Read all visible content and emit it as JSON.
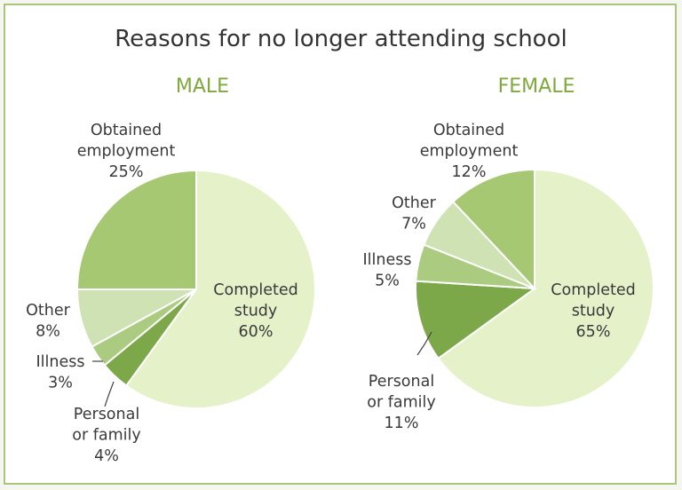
{
  "chart_data": [
    {
      "type": "pie",
      "title": "Reasons for no longer attending school",
      "chart_title": "MALE",
      "slices": [
        {
          "name": "Completed study",
          "label_lines": [
            "Completed",
            "study"
          ],
          "percent_text": "60%",
          "value": 60,
          "color": "#e5f1c8"
        },
        {
          "name": "Personal or family",
          "label_lines": [
            "Personal",
            "or family"
          ],
          "percent_text": "4%",
          "value": 4,
          "color": "#7da84a"
        },
        {
          "name": "Illness",
          "label_lines": [
            "Illness"
          ],
          "percent_text": "3%",
          "value": 3,
          "color": "#aacb80"
        },
        {
          "name": "Other",
          "label_lines": [
            "Other"
          ],
          "percent_text": "8%",
          "value": 8,
          "color": "#cfe2b3"
        },
        {
          "name": "Obtained employment",
          "label_lines": [
            "Obtained",
            "employment"
          ],
          "percent_text": "25%",
          "value": 25,
          "color": "#a6c873"
        }
      ]
    },
    {
      "type": "pie",
      "chart_title": "FEMALE",
      "slices": [
        {
          "name": "Completed study",
          "label_lines": [
            "Completed",
            "study"
          ],
          "percent_text": "65%",
          "value": 65,
          "color": "#e5f1c8"
        },
        {
          "name": "Personal or family",
          "label_lines": [
            "Personal",
            "or family"
          ],
          "percent_text": "11%",
          "value": 11,
          "color": "#7da84a"
        },
        {
          "name": "Illness",
          "label_lines": [
            "Illness"
          ],
          "percent_text": "5%",
          "value": 5,
          "color": "#aacb80"
        },
        {
          "name": "Other",
          "label_lines": [
            "Other"
          ],
          "percent_text": "7%",
          "value": 7,
          "color": "#cfe2b3"
        },
        {
          "name": "Obtained employment",
          "label_lines": [
            "Obtained",
            "employment"
          ],
          "percent_text": "12%",
          "value": 12,
          "color": "#a6c873"
        }
      ]
    }
  ]
}
